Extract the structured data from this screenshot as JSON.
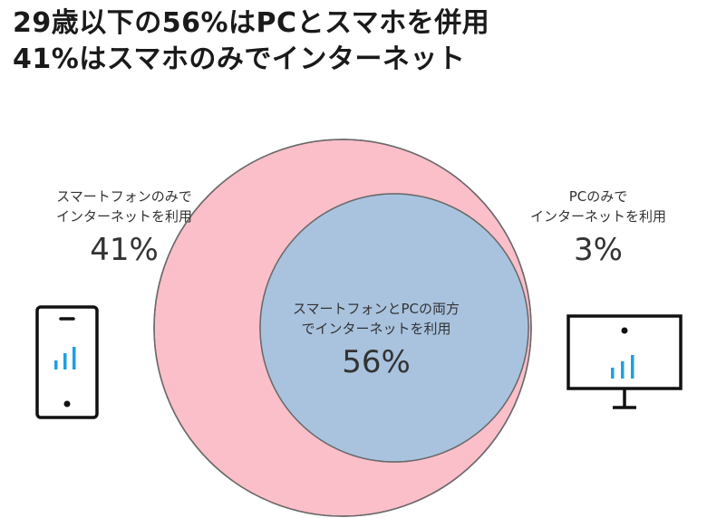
{
  "headline": {
    "line1": "29歳以下の56%はPCとスマホを併用",
    "line2": "41%はスマホのみでインターネット"
  },
  "venn": {
    "smartphone_only": {
      "line1": "スマートフォンのみで",
      "line2": "インターネットを利用",
      "value": "41%",
      "color": "#fbbfc9"
    },
    "pc_only": {
      "line1": "PCのみで",
      "line2": "インターネットを利用",
      "value": "3%",
      "color": "#a8dcf5"
    },
    "both": {
      "line1": "スマートフォンとPCの両方",
      "line2": "でインターネットを利用",
      "value": "56%",
      "color": "#a9c3df"
    }
  },
  "icons": {
    "smartphone": "smartphone-icon",
    "monitor": "monitor-icon",
    "accent_color": "#1ea0e0"
  }
}
